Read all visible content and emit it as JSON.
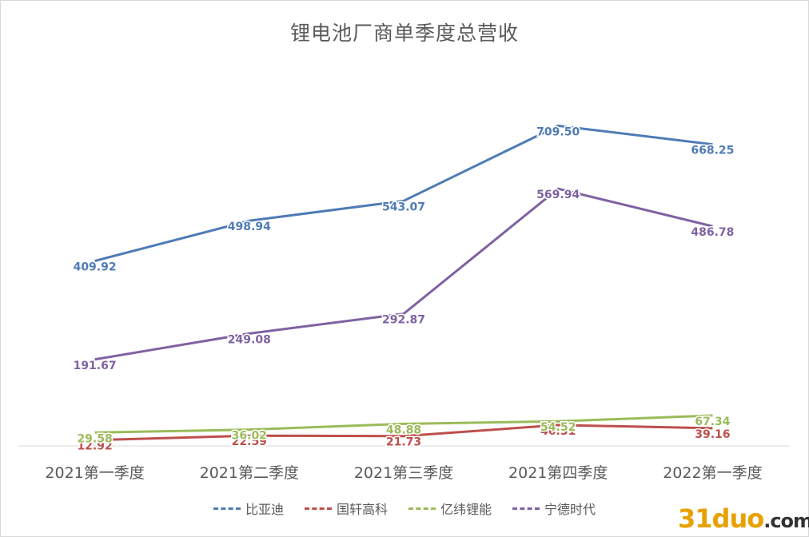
{
  "chart_data": {
    "type": "line",
    "title": "锂电池厂商单季度总营收",
    "categories": [
      "2021第一季度",
      "2021第二季度",
      "2021第三季度",
      "2021第四季度",
      "2022第一季度"
    ],
    "series": [
      {
        "name": "比亚迪",
        "color": "#4f7bb6",
        "values": [
          409.92,
          498.94,
          543.07,
          709.5,
          668.25
        ],
        "labels": [
          "409.92",
          "498.94",
          "543.07",
          "709.50",
          "668.25"
        ]
      },
      {
        "name": "国轩高科",
        "color": "#bd4f4c",
        "values": [
          12.92,
          22.59,
          21.73,
          46.31,
          39.16
        ],
        "labels": [
          "12.92",
          "22.59",
          "21.73",
          "46.31",
          "39.16"
        ]
      },
      {
        "name": "亿纬锂能",
        "color": "#9bbb59",
        "values": [
          29.58,
          36.02,
          48.88,
          54.52,
          67.34
        ],
        "labels": [
          "29.58",
          "36.02",
          "48.88",
          "54.52",
          "67.34"
        ]
      },
      {
        "name": "宁德时代",
        "color": "#7f62a2",
        "values": [
          191.67,
          249.08,
          292.87,
          569.94,
          486.78
        ],
        "labels": [
          "191.67",
          "249.08",
          "292.87",
          "569.94",
          "486.78"
        ]
      }
    ],
    "ylim": [
      0,
      800
    ],
    "grid": false,
    "legend_position": "bottom"
  },
  "watermark": {
    "main": "31duo",
    "suffix": ".com"
  }
}
